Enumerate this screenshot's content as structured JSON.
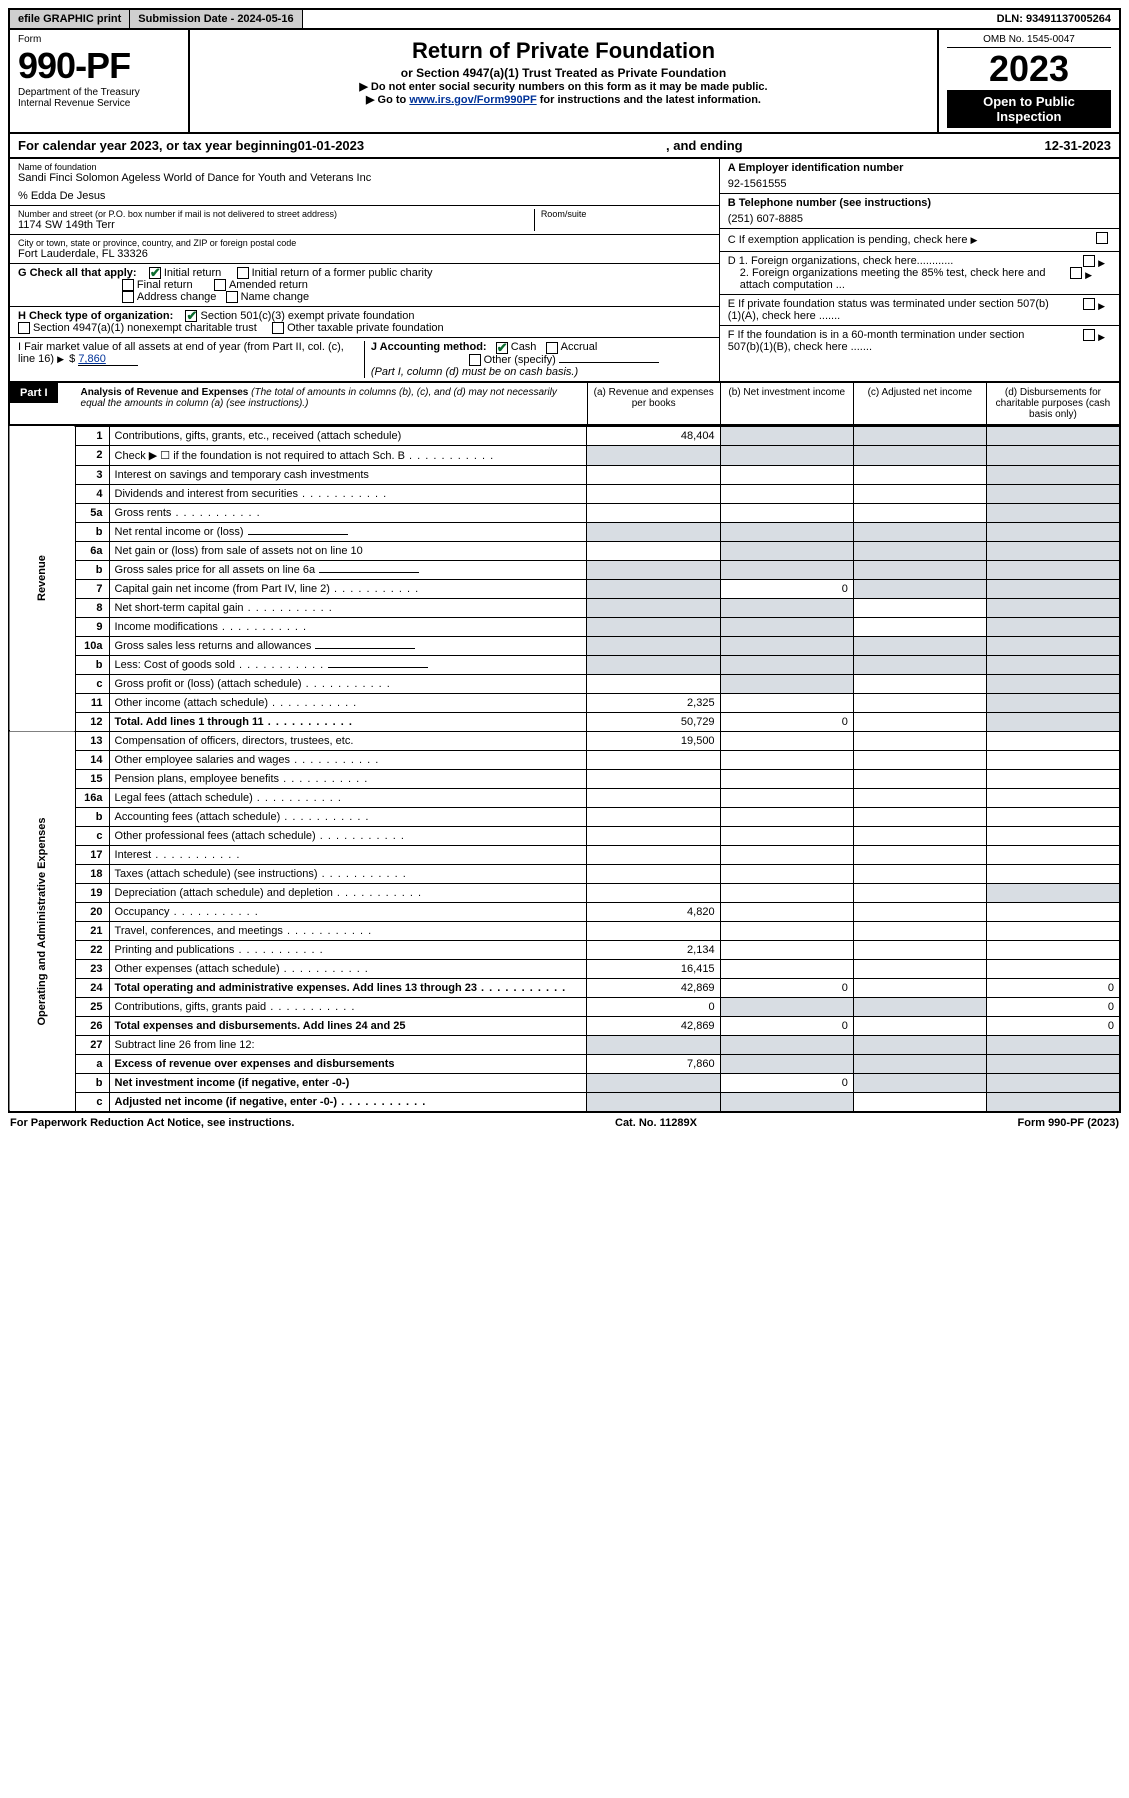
{
  "topbar": {
    "efile": "efile GRAPHIC print",
    "submission_label": "Submission Date - 2024-05-16",
    "dln": "DLN: 93491137005264"
  },
  "header": {
    "form_word": "Form",
    "form_no": "990-PF",
    "dept": "Department of the Treasury",
    "irs": "Internal Revenue Service",
    "title": "Return of Private Foundation",
    "subtitle": "or Section 4947(a)(1) Trust Treated as Private Foundation",
    "note1": "▶ Do not enter social security numbers on this form as it may be made public.",
    "note2_pre": "▶ Go to ",
    "note2_link": "www.irs.gov/Form990PF",
    "note2_post": " for instructions and the latest information.",
    "omb": "OMB No. 1545-0047",
    "year": "2023",
    "open": "Open to Public Inspection"
  },
  "calyear": {
    "pre": "For calendar year 2023, or tax year beginning ",
    "begin": "01-01-2023",
    "mid": " , and ending ",
    "end": "12-31-2023"
  },
  "entity": {
    "name_lbl": "Name of foundation",
    "name": "Sandi Finci Solomon Ageless World of Dance for Youth and Veterans Inc",
    "care_of": "% Edda De Jesus",
    "addr_lbl": "Number and street (or P.O. box number if mail is not delivered to street address)",
    "addr": "1174 SW 149th Terr",
    "room_lbl": "Room/suite",
    "city_lbl": "City or town, state or province, country, and ZIP or foreign postal code",
    "city": "Fort Lauderdale, FL  33326",
    "a_lbl": "A Employer identification number",
    "a_val": "92-1561555",
    "b_lbl": "B Telephone number (see instructions)",
    "b_val": "(251) 607-8885",
    "c_lbl": "C If exemption application is pending, check here",
    "d1": "D 1. Foreign organizations, check here............",
    "d2": "2. Foreign organizations meeting the 85% test, check here and attach computation ...",
    "e": "E  If private foundation status was terminated under section 507(b)(1)(A), check here .......",
    "f": "F  If the foundation is in a 60-month termination under section 507(b)(1)(B), check here .......",
    "g_lbl": "G Check all that apply:",
    "g_opts": [
      "Initial return",
      "Initial return of a former public charity",
      "Final return",
      "Amended return",
      "Address change",
      "Name change"
    ],
    "h_lbl": "H Check type of organization:",
    "h_opts": [
      "Section 501(c)(3) exempt private foundation",
      "Section 4947(a)(1) nonexempt charitable trust",
      "Other taxable private foundation"
    ],
    "i_lbl": "I Fair market value of all assets at end of year (from Part II, col. (c), line 16)",
    "i_val": "7,860",
    "j_lbl": "J Accounting method:",
    "j_opts": [
      "Cash",
      "Accrual",
      "Other (specify)"
    ],
    "j_note": "(Part I, column (d) must be on cash basis.)",
    "dollar": "$"
  },
  "part1": {
    "tag": "Part I",
    "title": "Analysis of Revenue and Expenses",
    "title_note": " (The total of amounts in columns (b), (c), and (d) may not necessarily equal the amounts in column (a) (see instructions).)",
    "col_a": "(a)  Revenue and expenses per books",
    "col_b": "(b)  Net investment income",
    "col_c": "(c)  Adjusted net income",
    "col_d": "(d)  Disbursements for charitable purposes (cash basis only)"
  },
  "side_rev": "Revenue",
  "side_exp": "Operating and Administrative Expenses",
  "rows": [
    {
      "n": "1",
      "d": "Contributions, gifts, grants, etc., received (attach schedule)",
      "a": "48,404",
      "shade_bcd": true
    },
    {
      "n": "2",
      "d": "Check ▶ ☐ if the foundation is not required to attach Sch. B",
      "dots": true,
      "shade_all": true
    },
    {
      "n": "3",
      "d": "Interest on savings and temporary cash investments",
      "shade_d": true
    },
    {
      "n": "4",
      "d": "Dividends and interest from securities",
      "dots": true,
      "shade_d": true
    },
    {
      "n": "5a",
      "d": "Gross rents",
      "dots": true,
      "shade_d": true
    },
    {
      "n": "b",
      "d": "Net rental income or (loss)",
      "inline_blank": true,
      "shade_all": true
    },
    {
      "n": "6a",
      "d": "Net gain or (loss) from sale of assets not on line 10",
      "shade_bcd": true
    },
    {
      "n": "b",
      "d": "Gross sales price for all assets on line 6a",
      "inline_blank": true,
      "shade_all": true
    },
    {
      "n": "7",
      "d": "Capital gain net income (from Part IV, line 2)",
      "dots": true,
      "shade_a": true,
      "b": "0",
      "shade_cd": true
    },
    {
      "n": "8",
      "d": "Net short-term capital gain",
      "dots": true,
      "shade_ab": true,
      "shade_d": true
    },
    {
      "n": "9",
      "d": "Income modifications",
      "dots": true,
      "shade_ab": true,
      "shade_d": true
    },
    {
      "n": "10a",
      "d": "Gross sales less returns and allowances",
      "inline_blank": true,
      "shade_all": true
    },
    {
      "n": "b",
      "d": "Less: Cost of goods sold",
      "dots": true,
      "inline_blank": true,
      "shade_all": true
    },
    {
      "n": "c",
      "d": "Gross profit or (loss) (attach schedule)",
      "dots": true,
      "shade_b": true,
      "shade_d": true
    },
    {
      "n": "11",
      "d": "Other income (attach schedule)",
      "dots": true,
      "a": "2,325",
      "shade_d": true
    },
    {
      "n": "12",
      "d": "Total. Add lines 1 through 11",
      "dots": true,
      "bold": true,
      "a": "50,729",
      "b": "0",
      "shade_d": true
    },
    {
      "n": "13",
      "d": "Compensation of officers, directors, trustees, etc.",
      "a": "19,500"
    },
    {
      "n": "14",
      "d": "Other employee salaries and wages",
      "dots": true
    },
    {
      "n": "15",
      "d": "Pension plans, employee benefits",
      "dots": true
    },
    {
      "n": "16a",
      "d": "Legal fees (attach schedule)",
      "dots": true
    },
    {
      "n": "b",
      "d": "Accounting fees (attach schedule)",
      "dots": true
    },
    {
      "n": "c",
      "d": "Other professional fees (attach schedule)",
      "dots": true
    },
    {
      "n": "17",
      "d": "Interest",
      "dots": true
    },
    {
      "n": "18",
      "d": "Taxes (attach schedule) (see instructions)",
      "dots": true
    },
    {
      "n": "19",
      "d": "Depreciation (attach schedule) and depletion",
      "dots": true,
      "shade_d": true
    },
    {
      "n": "20",
      "d": "Occupancy",
      "dots": true,
      "a": "4,820"
    },
    {
      "n": "21",
      "d": "Travel, conferences, and meetings",
      "dots": true
    },
    {
      "n": "22",
      "d": "Printing and publications",
      "dots": true,
      "a": "2,134"
    },
    {
      "n": "23",
      "d": "Other expenses (attach schedule)",
      "dots": true,
      "a": "16,415"
    },
    {
      "n": "24",
      "d": "Total operating and administrative expenses. Add lines 13 through 23",
      "dots": true,
      "bold": true,
      "a": "42,869",
      "b": "0",
      "d_col": "0"
    },
    {
      "n": "25",
      "d": "Contributions, gifts, grants paid",
      "dots": true,
      "a": "0",
      "shade_bc": true,
      "d_col": "0"
    },
    {
      "n": "26",
      "d": "Total expenses and disbursements. Add lines 24 and 25",
      "bold": true,
      "a": "42,869",
      "b": "0",
      "d_col": "0"
    },
    {
      "n": "27",
      "d": "Subtract line 26 from line 12:",
      "shade_all": true
    },
    {
      "n": "a",
      "d": "Excess of revenue over expenses and disbursements",
      "bold": true,
      "a": "7,860",
      "shade_bcd": true
    },
    {
      "n": "b",
      "d": "Net investment income (if negative, enter -0-)",
      "bold": true,
      "shade_a": true,
      "b": "0",
      "shade_cd": true
    },
    {
      "n": "c",
      "d": "Adjusted net income (if negative, enter -0-)",
      "dots": true,
      "bold": true,
      "shade_ab": true,
      "shade_d": true
    }
  ],
  "footer": {
    "left": "For Paperwork Reduction Act Notice, see instructions.",
    "mid": "Cat. No. 11289X",
    "right": "Form 990-PF (2023)"
  },
  "colors": {
    "shade": "#d8dde3",
    "link": "#003399",
    "check": "#0b6b2e"
  }
}
